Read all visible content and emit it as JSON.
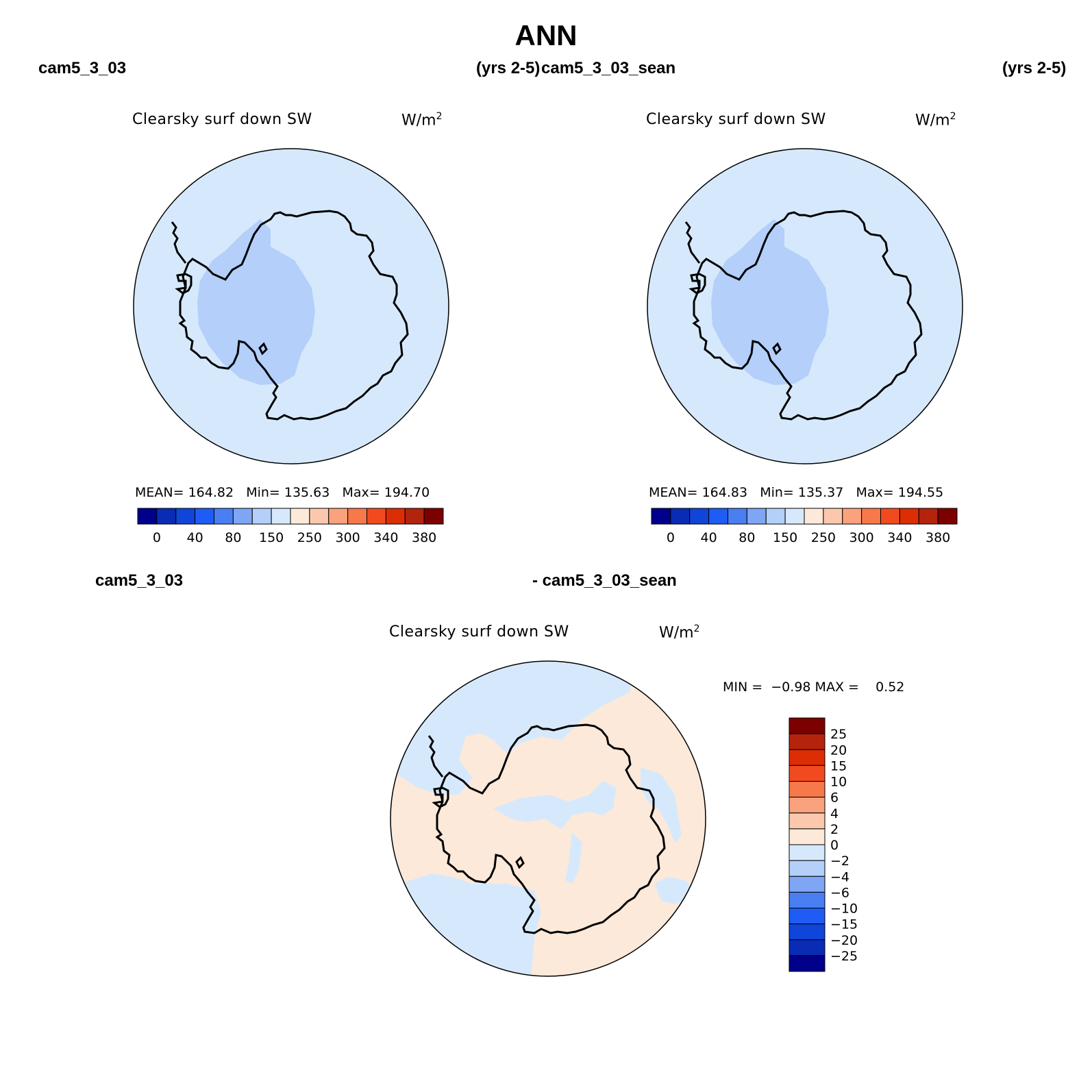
{
  "figure": {
    "title": "ANN",
    "colors": {
      "land": "#d6e9fc",
      "ocean_blue": "#d6e9fc",
      "low_blue": "#b3cffa",
      "diff_pos": "#fde9d9",
      "diff_neg": "#d6e9fc"
    }
  },
  "panel_left": {
    "case_label": "cam5_3_03",
    "years_label": "(yrs 2-5)",
    "var_label": "Clearsky surf down SW",
    "units_base": "W/m",
    "units_sup": "2",
    "mean_label": "MEAN=",
    "mean_value": "164.82",
    "min_label": "Min=",
    "min_value": "135.63",
    "max_label": "Max=",
    "max_value": "194.70",
    "ticks": [
      "0",
      "40",
      "80",
      "150",
      "250",
      "300",
      "340",
      "380"
    ]
  },
  "panel_right": {
    "case_label": "cam5_3_03_sean",
    "years_label": "(yrs 2-5)",
    "var_label": "Clearsky surf down SW",
    "units_base": "W/m",
    "units_sup": "2",
    "mean_label": "MEAN=",
    "mean_value": "164.83",
    "min_label": "Min=",
    "min_value": "135.37",
    "max_label": "Max=",
    "max_value": "194.55",
    "ticks": [
      "0",
      "40",
      "80",
      "150",
      "250",
      "300",
      "340",
      "380"
    ]
  },
  "panel_diff": {
    "case_label_a": "cam5_3_03",
    "case_label_b": "- cam5_3_03_sean",
    "var_label": "Clearsky surf down SW",
    "units_base": "W/m",
    "units_sup": "2",
    "min_label": "MIN =",
    "min_value": "−0.98",
    "max_label": "MAX =",
    "max_value": "0.52",
    "ticks": [
      "25",
      "20",
      "15",
      "10",
      "6",
      "4",
      "2",
      "0",
      "−2",
      "−4",
      "−6",
      "−10",
      "−15",
      "−20",
      "−25"
    ]
  },
  "colorbar_abs": [
    "#00008c",
    "#0a2cb4",
    "#0f45d9",
    "#1e5cf5",
    "#4a7ef3",
    "#7ea6f5",
    "#b3cffa",
    "#d6e9fc",
    "#fde9d9",
    "#fbc8ae",
    "#f9a27d",
    "#f7784a",
    "#f24a1f",
    "#dc2d05",
    "#b4230c",
    "#7d0000"
  ],
  "colorbar_diff": [
    "#7d0000",
    "#b4230c",
    "#dc2d05",
    "#f24a1f",
    "#f7784a",
    "#f9a27d",
    "#fbc8ae",
    "#fde9d9",
    "#d6e9fc",
    "#b3cffa",
    "#7ea6f5",
    "#4a7ef3",
    "#1e5cf5",
    "#0f45d9",
    "#0a2cb4",
    "#00008c"
  ]
}
